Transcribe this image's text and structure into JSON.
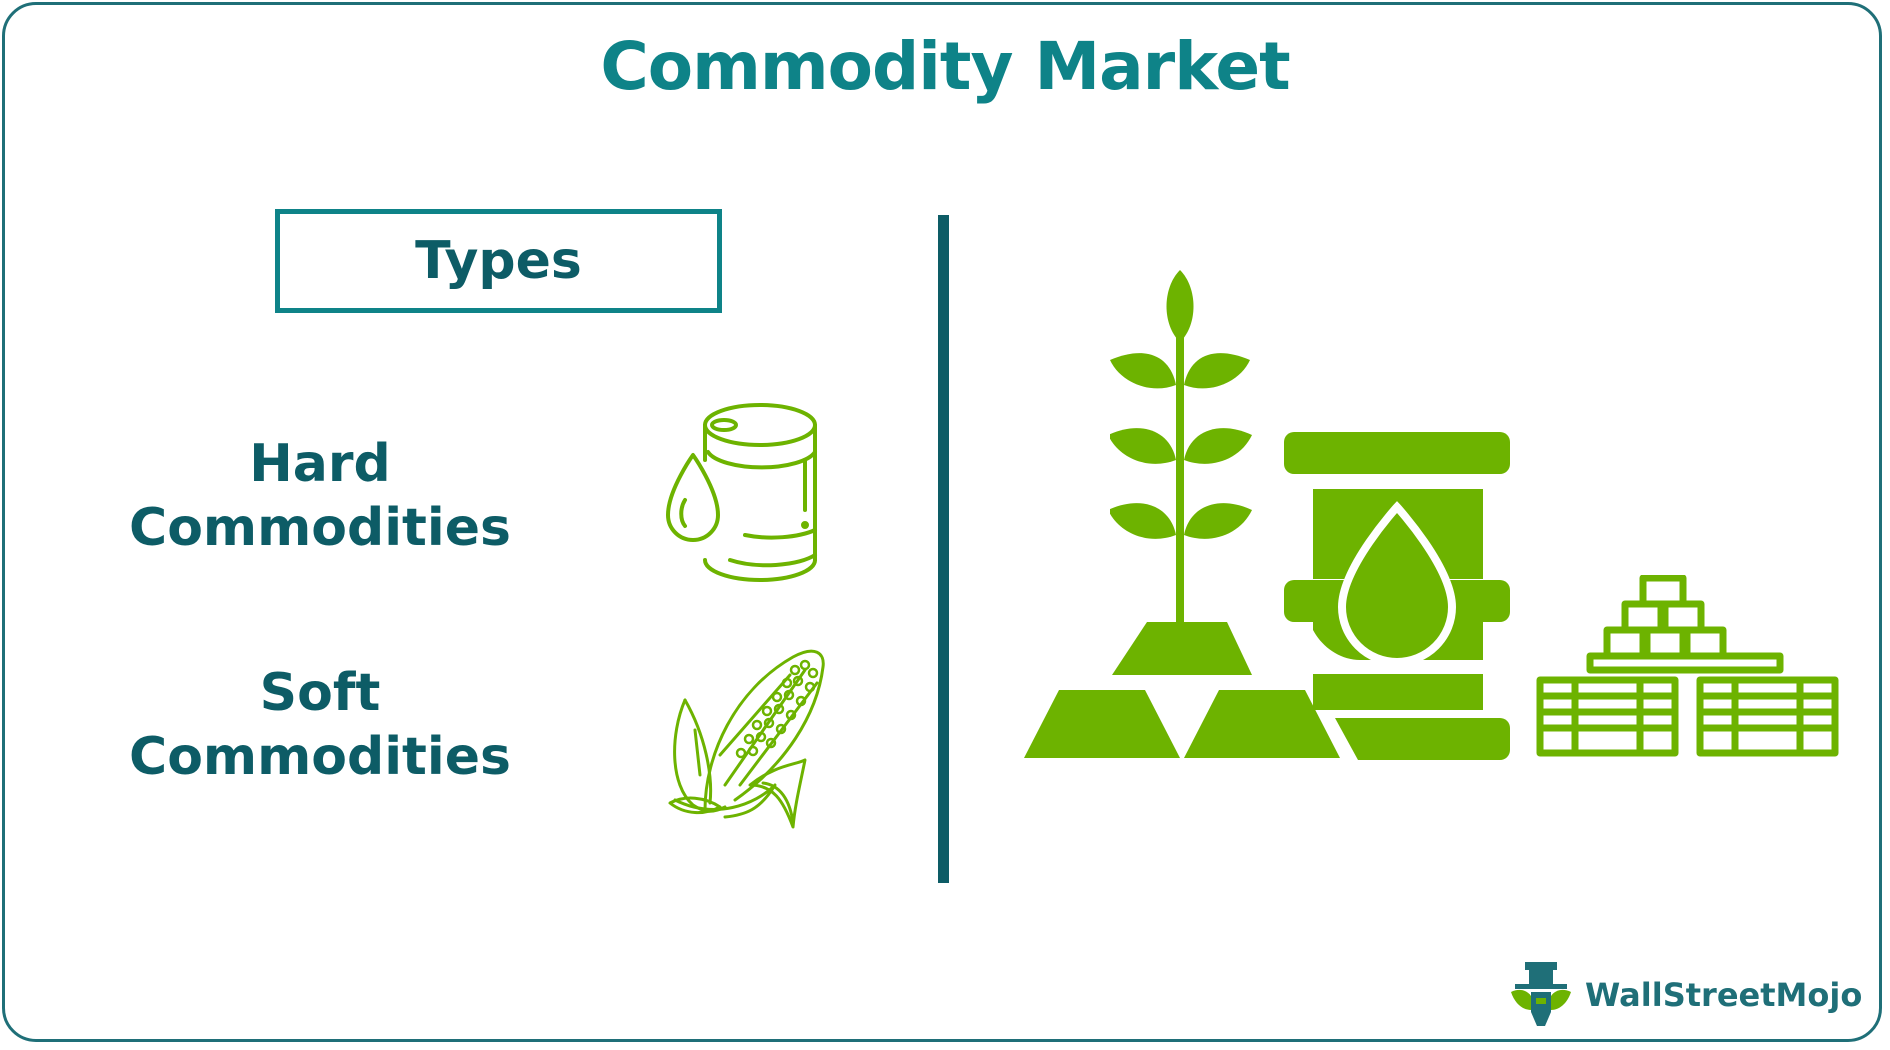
{
  "title": "Commodity Market",
  "types_heading": "Types",
  "categories": [
    {
      "line1": "Hard",
      "line2": "Commodities",
      "icon": "oil-barrel-drop-icon"
    },
    {
      "line1": "Soft",
      "line2": "Commodities",
      "icon": "corn-cob-icon"
    }
  ],
  "illustration": {
    "icons": [
      "plant-icon",
      "gold-bars-icon",
      "oil-barrel-icon",
      "coin-stacks-icon"
    ]
  },
  "brand": {
    "name": "WallStreetMojo",
    "icon": "wallstreetmojo-logo-icon"
  },
  "colors": {
    "title": "#0e8388",
    "text": "#0d5c66",
    "accent_green": "#6db300",
    "border": "#1f6f78"
  }
}
